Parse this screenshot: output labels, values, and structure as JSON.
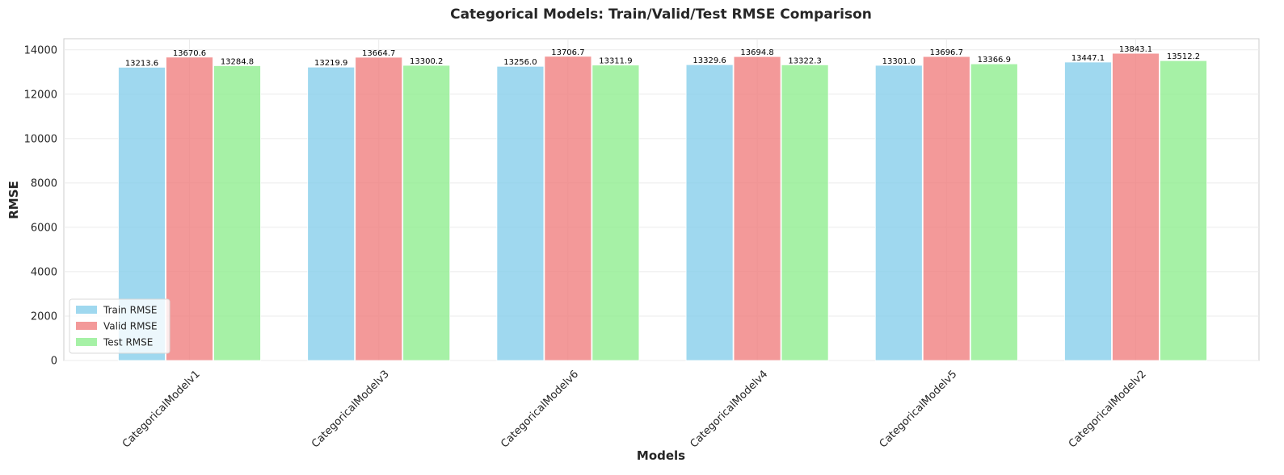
{
  "chart_data": {
    "type": "bar",
    "title": "Categorical Models: Train/Valid/Test RMSE Comparison",
    "xlabel": "Models",
    "ylabel": "RMSE",
    "ylim": [
      0,
      14500
    ],
    "yticks": [
      0,
      2000,
      4000,
      6000,
      8000,
      10000,
      12000,
      14000
    ],
    "grid": true,
    "legend_position": "lower-left",
    "categories": [
      "CategoricalModelv1",
      "CategoricalModelv3",
      "CategoricalModelv6",
      "CategoricalModelv4",
      "CategoricalModelv5",
      "CategoricalModelv2"
    ],
    "series": [
      {
        "name": "Train RMSE",
        "color": "#87ceeb",
        "values": [
          13213.6,
          13219.9,
          13256.0,
          13329.6,
          13301.0,
          13447.1
        ],
        "labels": [
          "13213.6",
          "13219.9",
          "13256.0",
          "13329.6",
          "13301.0",
          "13447.1"
        ]
      },
      {
        "name": "Valid RMSE",
        "color": "#f08080",
        "values": [
          13670.6,
          13664.7,
          13706.7,
          13694.8,
          13696.7,
          13843.1
        ],
        "labels": [
          "13670.6",
          "13664.7",
          "13706.7",
          "13694.8",
          "13696.7",
          "13843.1"
        ]
      },
      {
        "name": "Test RMSE",
        "color": "#90ee90",
        "values": [
          13284.8,
          13300.2,
          13311.9,
          13322.3,
          13366.9,
          13512.2
        ],
        "labels": [
          "13284.8",
          "13300.2",
          "13311.9",
          "13322.3",
          "13366.9",
          "13512.2"
        ]
      }
    ]
  }
}
